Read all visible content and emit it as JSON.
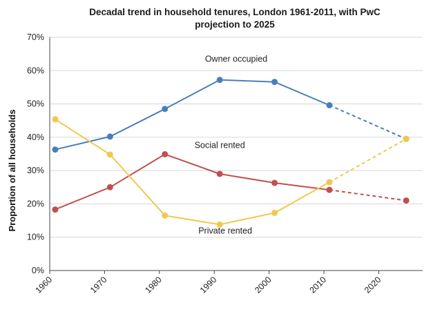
{
  "chart_data": {
    "type": "line",
    "title_line1": "Decadal trend in household tenures, London 1961-2011,  with PwC",
    "title_line2": "projection to 2025",
    "ylabel": "Proportion of all households",
    "xlabel": "",
    "ylim": [
      0,
      70
    ],
    "xlim": [
      1960,
      2028
    ],
    "y_ticks": [
      {
        "value": 0,
        "label": "0%"
      },
      {
        "value": 10,
        "label": "10%"
      },
      {
        "value": 20,
        "label": "20%"
      },
      {
        "value": 30,
        "label": "30%"
      },
      {
        "value": 40,
        "label": "40%"
      },
      {
        "value": 50,
        "label": "50%"
      },
      {
        "value": 60,
        "label": "60%"
      },
      {
        "value": 70,
        "label": "70%"
      }
    ],
    "x_ticks": [
      {
        "value": 1960,
        "label": "1960"
      },
      {
        "value": 1970,
        "label": "1970"
      },
      {
        "value": 1980,
        "label": "1980"
      },
      {
        "value": 1990,
        "label": "1990"
      },
      {
        "value": 2000,
        "label": "2000"
      },
      {
        "value": 2010,
        "label": "2010"
      },
      {
        "value": 2020,
        "label": "2020"
      }
    ],
    "grid": true,
    "projection_note": "dashed segments show projection 2011-2025",
    "series": [
      {
        "name": "Owner occupied",
        "color": "#4a7ebb",
        "x": [
          1961,
          1971,
          1981,
          1991,
          2001,
          2011
        ],
        "values": [
          36.3,
          40.2,
          48.5,
          57.2,
          56.6,
          49.6
        ],
        "projection_x": [
          2011,
          2025
        ],
        "projection_values": [
          49.6,
          39.5
        ]
      },
      {
        "name": "Social rented",
        "color": "#c0504d",
        "x": [
          1961,
          1971,
          1981,
          1991,
          2001,
          2011
        ],
        "values": [
          18.3,
          25.0,
          34.9,
          29.0,
          26.3,
          24.2
        ],
        "projection_x": [
          2011,
          2025
        ],
        "projection_values": [
          24.2,
          21.0
        ]
      },
      {
        "name": "Private rented",
        "color": "#f0c850",
        "x": [
          1961,
          1971,
          1981,
          1991,
          2001,
          2011
        ],
        "values": [
          45.4,
          34.8,
          16.5,
          13.8,
          17.3,
          26.5
        ],
        "projection_x": [
          2011,
          2025
        ],
        "projection_values": [
          26.5,
          39.5
        ]
      }
    ],
    "series_labels": [
      {
        "series": 0,
        "text": "Owner occupied",
        "x": 1994,
        "y": 62.6
      },
      {
        "series": 1,
        "text": "Social rented",
        "x": 1991,
        "y": 36.8
      },
      {
        "series": 2,
        "text": "Private rented",
        "x": 1992,
        "y": 11.1
      }
    ]
  }
}
